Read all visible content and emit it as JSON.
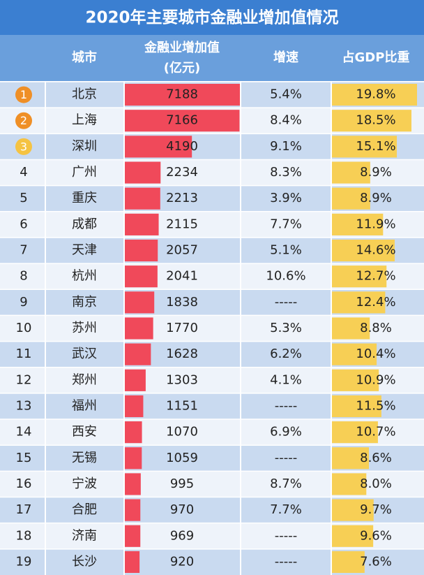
{
  "title": "2020年主要城市金融业增加值情况",
  "table": {
    "headers": [
      "城市",
      "金融业增加值",
      "(亿元)",
      "增速",
      "占GDP比重"
    ],
    "rows": [
      {
        "rank": 1,
        "city": "北京",
        "value": 7188,
        "growth": "5.4%",
        "share": 19.8,
        "share_label": "19.8%"
      },
      {
        "rank": 2,
        "city": "上海",
        "value": 7166,
        "growth": "8.4%",
        "share": 18.5,
        "share_label": "18.5%"
      },
      {
        "rank": 3,
        "city": "深圳",
        "value": 4190,
        "growth": "9.1%",
        "share": 15.1,
        "share_label": "15.1%"
      },
      {
        "rank": 4,
        "city": "广州",
        "value": 2234,
        "growth": "8.3%",
        "share": 8.9,
        "share_label": "8.9%"
      },
      {
        "rank": 5,
        "city": "重庆",
        "value": 2213,
        "growth": "3.9%",
        "share": 8.9,
        "share_label": "8.9%"
      },
      {
        "rank": 6,
        "city": "成都",
        "value": 2115,
        "growth": "7.7%",
        "share": 11.9,
        "share_label": "11.9%"
      },
      {
        "rank": 7,
        "city": "天津",
        "value": 2057,
        "growth": "5.1%",
        "share": 14.6,
        "share_label": "14.6%"
      },
      {
        "rank": 8,
        "city": "杭州",
        "value": 2041,
        "growth": "10.6%",
        "share": 12.7,
        "share_label": "12.7%"
      },
      {
        "rank": 9,
        "city": "南京",
        "value": 1838,
        "growth": "-----",
        "share": 12.4,
        "share_label": "12.4%"
      },
      {
        "rank": 10,
        "city": "苏州",
        "value": 1770,
        "growth": "5.3%",
        "share": 8.8,
        "share_label": "8.8%"
      },
      {
        "rank": 11,
        "city": "武汉",
        "value": 1628,
        "growth": "6.2%",
        "share": 10.4,
        "share_label": "10.4%"
      },
      {
        "rank": 12,
        "city": "郑州",
        "value": 1303,
        "growth": "4.1%",
        "share": 10.9,
        "share_label": "10.9%"
      },
      {
        "rank": 13,
        "city": "福州",
        "value": 1151,
        "growth": "-----",
        "share": 11.5,
        "share_label": "11.5%"
      },
      {
        "rank": 14,
        "city": "西安",
        "value": 1070,
        "growth": "6.9%",
        "share": 10.7,
        "share_label": "10.7%"
      },
      {
        "rank": 15,
        "city": "无锡",
        "value": 1059,
        "growth": "-----",
        "share": 8.6,
        "share_label": "8.6%"
      },
      {
        "rank": 16,
        "city": "宁波",
        "value": 995,
        "growth": "8.7%",
        "share": 8.0,
        "share_label": "8.0%"
      },
      {
        "rank": 17,
        "city": "合肥",
        "value": 970,
        "growth": "7.7%",
        "share": 9.7,
        "share_label": "9.7%"
      },
      {
        "rank": 18,
        "city": "济南",
        "value": 969,
        "growth": "-----",
        "share": 9.6,
        "share_label": "9.6%"
      },
      {
        "rank": 19,
        "city": "长沙",
        "value": 920,
        "growth": "-----",
        "share": 7.6,
        "share_label": "7.6%"
      }
    ]
  }
}
